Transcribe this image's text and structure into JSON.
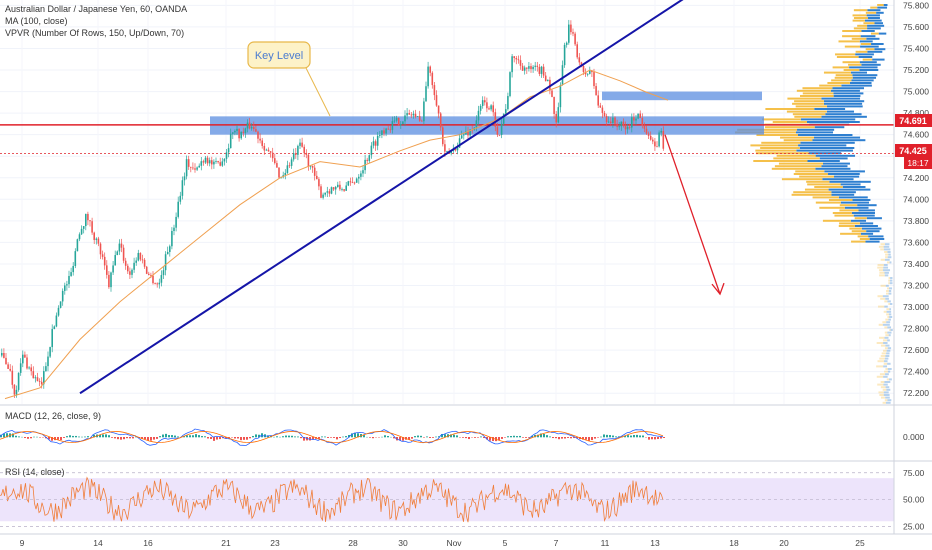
{
  "header": {
    "title": "Australian Dollar / Japanese Yen, 60, OANDA",
    "ma_label": "MA (100, close)",
    "vpvr_label": "VPVR (Number Of Rows, 150, Up/Down, 70)",
    "macd_label": "MACD (12, 26, close, 9)",
    "rsi_label": "RSI (14, close)"
  },
  "annotation": {
    "key_level_label": "Key Level"
  },
  "price_badges": {
    "last_price": "74.691",
    "current": "74.425",
    "countdown": "18:17"
  },
  "colors": {
    "up": "#26a69a",
    "down": "#ef5350",
    "trendline": "#1515a8",
    "ma": "#f0a050",
    "zone": "#5b8ee0",
    "red_line": "#e0202a",
    "rsi_band": "#ede4fb",
    "rsi_line": "#f07e3a",
    "vp_up": "#f5c04a",
    "vp_down": "#2e7fd0"
  },
  "chart_data": [
    {
      "type": "candlestick",
      "title": "Australian Dollar / Japanese Yen, 60, OANDA",
      "y_axis_ticks": [
        "75.800",
        "75.600",
        "75.400",
        "75.200",
        "75.000",
        "74.800",
        "74.600",
        "74.400",
        "74.200",
        "74.000",
        "73.800",
        "73.600",
        "73.400",
        "73.200",
        "73.000",
        "72.800",
        "72.600",
        "72.400",
        "72.200"
      ],
      "x_axis_ticks": [
        "9",
        "14",
        "16",
        "21",
        "23",
        "28",
        "30",
        "Nov",
        "5",
        "7",
        "11",
        "13",
        "18",
        "20",
        "25"
      ],
      "ylim": [
        72.1,
        75.85
      ],
      "key_levels": {
        "resistance_zone": [
          74.6,
          74.77
        ],
        "upper_zone": [
          74.92,
          75.0
        ],
        "horizontal_line": 74.691,
        "current_price": 74.425
      },
      "trendline": {
        "from": {
          "date": "Oct 11",
          "price": 72.2
        },
        "to": {
          "date": "Nov 9",
          "price": 75.9
        }
      },
      "projection_arrow": {
        "from_price": 74.6,
        "to_price": 73.12
      },
      "path": [
        [
          0,
          72.55
        ],
        [
          8,
          72.45
        ],
        [
          14,
          72.2
        ],
        [
          22,
          72.55
        ],
        [
          30,
          72.4
        ],
        [
          40,
          72.25
        ],
        [
          50,
          72.7
        ],
        [
          60,
          73.1
        ],
        [
          70,
          73.3
        ],
        [
          78,
          73.7
        ],
        [
          86,
          73.85
        ],
        [
          92,
          73.7
        ],
        [
          100,
          73.5
        ],
        [
          108,
          73.2
        ],
        [
          118,
          73.6
        ],
        [
          128,
          73.3
        ],
        [
          138,
          73.5
        ],
        [
          148,
          73.3
        ],
        [
          158,
          73.2
        ],
        [
          166,
          73.5
        ],
        [
          172,
          73.7
        ],
        [
          180,
          74.1
        ],
        [
          186,
          74.35
        ],
        [
          194,
          74.25
        ],
        [
          204,
          74.4
        ],
        [
          214,
          74.3
        ],
        [
          224,
          74.4
        ],
        [
          232,
          74.65
        ],
        [
          240,
          74.6
        ],
        [
          250,
          74.7
        ],
        [
          260,
          74.55
        ],
        [
          270,
          74.4
        ],
        [
          280,
          74.2
        ],
        [
          290,
          74.35
        ],
        [
          300,
          74.5
        ],
        [
          310,
          74.3
        ],
        [
          320,
          74.05
        ],
        [
          330,
          74.1
        ],
        [
          342,
          74.1
        ],
        [
          352,
          74.15
        ],
        [
          362,
          74.3
        ],
        [
          372,
          74.5
        ],
        [
          382,
          74.65
        ],
        [
          392,
          74.7
        ],
        [
          402,
          74.75
        ],
        [
          412,
          74.8
        ],
        [
          420,
          74.7
        ],
        [
          428,
          75.25
        ],
        [
          436,
          74.9
        ],
        [
          444,
          74.4
        ],
        [
          452,
          74.45
        ],
        [
          462,
          74.6
        ],
        [
          472,
          74.65
        ],
        [
          482,
          74.9
        ],
        [
          490,
          74.85
        ],
        [
          498,
          74.6
        ],
        [
          506,
          74.9
        ],
        [
          512,
          75.35
        ],
        [
          520,
          75.25
        ],
        [
          528,
          75.2
        ],
        [
          540,
          75.2
        ],
        [
          548,
          75.1
        ],
        [
          556,
          74.65
        ],
        [
          562,
          75.3
        ],
        [
          568,
          75.6
        ],
        [
          574,
          75.45
        ],
        [
          582,
          75.15
        ],
        [
          590,
          75.2
        ],
        [
          598,
          74.85
        ],
        [
          606,
          74.75
        ],
        [
          616,
          74.7
        ],
        [
          626,
          74.65
        ],
        [
          636,
          74.8
        ],
        [
          646,
          74.65
        ],
        [
          654,
          74.45
        ],
        [
          660,
          74.65
        ],
        [
          664,
          74.42
        ]
      ],
      "ma_path": [
        [
          5,
          72.15
        ],
        [
          40,
          72.25
        ],
        [
          80,
          72.7
        ],
        [
          120,
          73.05
        ],
        [
          160,
          73.35
        ],
        [
          200,
          73.65
        ],
        [
          240,
          73.95
        ],
        [
          280,
          74.2
        ],
        [
          320,
          74.35
        ],
        [
          360,
          74.3
        ],
        [
          400,
          74.45
        ],
        [
          430,
          74.55
        ],
        [
          460,
          74.6
        ],
        [
          500,
          74.75
        ],
        [
          530,
          74.95
        ],
        [
          560,
          75.05
        ],
        [
          590,
          75.2
        ],
        [
          620,
          75.1
        ],
        [
          645,
          75.0
        ],
        [
          668,
          74.92
        ]
      ],
      "volume_profile": {
        "levels": []
      }
    },
    {
      "type": "line",
      "name": "MACD (12, 26, close, 9)",
      "y_axis_ticks": [
        "0.000"
      ]
    },
    {
      "type": "line",
      "name": "RSI (14, close)",
      "y_axis_ticks": [
        "75.00",
        "50.00",
        "25.00"
      ],
      "ylim": [
        20,
        85
      ],
      "band": [
        30,
        70
      ]
    }
  ]
}
